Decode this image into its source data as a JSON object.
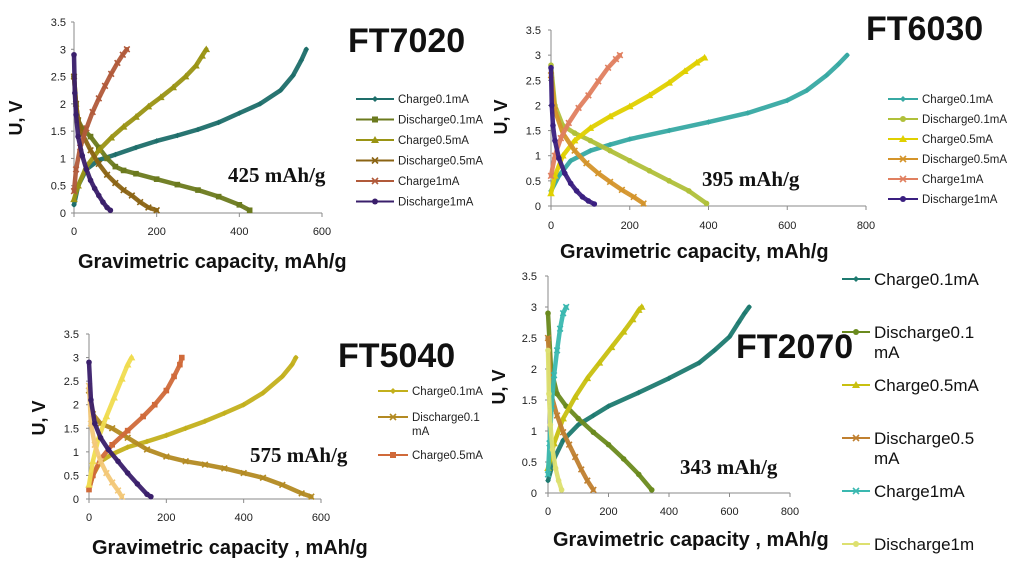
{
  "chart_data": [
    {
      "type": "scatter",
      "title": "FT7020",
      "annotation": "425 mAh/g",
      "xlabel": "Gravimetric capacity, mAh/g",
      "ylabel": "U, V",
      "xlim": [
        0,
        600
      ],
      "ylim": [
        0,
        3.5
      ],
      "xticks": [
        "0",
        "200",
        "400",
        "600"
      ],
      "yticks": [
        "0",
        "0.5",
        "1",
        "1.5",
        "2",
        "2.5",
        "3",
        "3.5"
      ],
      "legend_position": "right",
      "series": [
        {
          "name": "Charge0.1mA",
          "color": "#1e6e6a",
          "marker": "diamond",
          "x": [
            0,
            10,
            30,
            60,
            100,
            150,
            200,
            250,
            300,
            350,
            400,
            450,
            500,
            530,
            550,
            562
          ],
          "y": [
            0.15,
            0.5,
            0.8,
            0.97,
            1.07,
            1.2,
            1.32,
            1.42,
            1.53,
            1.66,
            1.83,
            2.0,
            2.25,
            2.52,
            2.8,
            3.0
          ]
        },
        {
          "name": "Discharge0.1mA",
          "color": "#6b7a1e",
          "marker": "square",
          "x": [
            0,
            5,
            10,
            20,
            40,
            60,
            80,
            100,
            120,
            150,
            200,
            250,
            300,
            350,
            400,
            425
          ],
          "y": [
            2.5,
            2.0,
            1.7,
            1.55,
            1.4,
            1.2,
            1.0,
            0.85,
            0.78,
            0.72,
            0.62,
            0.52,
            0.42,
            0.3,
            0.15,
            0.05
          ]
        },
        {
          "name": "Charge0.5mA",
          "color": "#9a9414",
          "marker": "triangle",
          "x": [
            0,
            10,
            30,
            60,
            90,
            120,
            150,
            180,
            210,
            240,
            270,
            295,
            310,
            320
          ],
          "y": [
            0.25,
            0.5,
            0.85,
            1.15,
            1.38,
            1.58,
            1.76,
            1.95,
            2.12,
            2.3,
            2.5,
            2.7,
            2.88,
            3.0
          ]
        },
        {
          "name": "Discharge0.5mA",
          "color": "#8b6414",
          "marker": "x",
          "x": [
            0,
            5,
            10,
            20,
            40,
            60,
            80,
            100,
            120,
            140,
            160,
            180,
            200
          ],
          "y": [
            2.5,
            2.0,
            1.7,
            1.45,
            1.15,
            0.9,
            0.7,
            0.55,
            0.42,
            0.32,
            0.2,
            0.1,
            0.05
          ]
        },
        {
          "name": "Charge1mA",
          "color": "#b15a3a",
          "marker": "x",
          "x": [
            0,
            5,
            15,
            30,
            45,
            60,
            75,
            90,
            105,
            118,
            128
          ],
          "y": [
            0.4,
            0.8,
            1.2,
            1.55,
            1.85,
            2.1,
            2.33,
            2.55,
            2.75,
            2.9,
            3.0
          ]
        },
        {
          "name": "Discharge1mA",
          "color": "#3a1f6b",
          "marker": "circle",
          "x": [
            0,
            2,
            5,
            10,
            20,
            30,
            40,
            50,
            60,
            70,
            80,
            88
          ],
          "y": [
            2.9,
            2.2,
            1.8,
            1.4,
            1.05,
            0.8,
            0.6,
            0.45,
            0.32,
            0.2,
            0.1,
            0.05
          ]
        }
      ]
    },
    {
      "type": "scatter",
      "title": "FT6030",
      "annotation": "395 mAh/g",
      "xlabel": "Gravimetric capacity, mAh/g",
      "ylabel": "U, V",
      "xlim": [
        0,
        800
      ],
      "ylim": [
        0,
        3.5
      ],
      "xticks": [
        "0",
        "200",
        "400",
        "600",
        "800"
      ],
      "yticks": [
        "0",
        "0.5",
        "1",
        "1.5",
        "2",
        "2.5",
        "3",
        "3.5"
      ],
      "legend_position": "right",
      "series": [
        {
          "name": "Charge0.1mA",
          "color": "#37a9a3",
          "marker": "diamond",
          "x": [
            0,
            20,
            50,
            100,
            150,
            200,
            300,
            400,
            500,
            600,
            650,
            700,
            730,
            752
          ],
          "y": [
            0.3,
            0.6,
            0.9,
            1.1,
            1.22,
            1.33,
            1.5,
            1.67,
            1.85,
            2.1,
            2.3,
            2.6,
            2.82,
            3.0
          ]
        },
        {
          "name": "Discharge0.1mA",
          "color": "#b0c03a",
          "marker": "circle",
          "x": [
            0,
            10,
            30,
            60,
            100,
            150,
            200,
            250,
            300,
            350,
            395
          ],
          "y": [
            2.8,
            2.0,
            1.6,
            1.45,
            1.3,
            1.1,
            0.9,
            0.7,
            0.5,
            0.3,
            0.05
          ]
        },
        {
          "name": "Charge0.5mA",
          "color": "#e0d000",
          "marker": "triangle",
          "x": [
            0,
            10,
            30,
            60,
            100,
            150,
            200,
            250,
            300,
            340,
            370,
            390
          ],
          "y": [
            0.25,
            0.6,
            1.0,
            1.3,
            1.55,
            1.78,
            1.98,
            2.2,
            2.45,
            2.68,
            2.85,
            2.95
          ]
        },
        {
          "name": "Discharge0.5mA",
          "color": "#d4942a",
          "marker": "x",
          "x": [
            0,
            10,
            30,
            60,
            90,
            120,
            150,
            180,
            210,
            235
          ],
          "y": [
            2.6,
            1.9,
            1.45,
            1.1,
            0.85,
            0.65,
            0.48,
            0.32,
            0.18,
            0.05
          ]
        },
        {
          "name": "Charge1mA",
          "color": "#e08060",
          "marker": "x",
          "x": [
            0,
            10,
            25,
            45,
            70,
            95,
            120,
            145,
            165,
            175
          ],
          "y": [
            0.6,
            1.0,
            1.35,
            1.65,
            1.95,
            2.2,
            2.48,
            2.75,
            2.92,
            3.0
          ]
        },
        {
          "name": "Discharge1mA",
          "color": "#3a1f80",
          "marker": "circle",
          "x": [
            0,
            2,
            5,
            10,
            20,
            35,
            50,
            65,
            80,
            95,
            110
          ],
          "y": [
            2.75,
            2.0,
            1.6,
            1.3,
            0.95,
            0.65,
            0.45,
            0.3,
            0.18,
            0.1,
            0.04
          ]
        }
      ]
    },
    {
      "type": "scatter",
      "title": "FT5040",
      "annotation": "575 mAh/g",
      "xlabel": "Gravimetric capacity , mAh/g",
      "ylabel": "U, V",
      "xlim": [
        0,
        600
      ],
      "ylim": [
        0,
        3.5
      ],
      "xticks": [
        "0",
        "200",
        "400",
        "600"
      ],
      "yticks": [
        "0",
        "0.5",
        "1",
        "1.5",
        "2",
        "2.5",
        "3",
        "3.5"
      ],
      "legend_position": "right",
      "series": [
        {
          "name": "Charge0.1mA",
          "color": "#c3b01c",
          "marker": "diamond",
          "x": [
            0,
            10,
            30,
            60,
            100,
            150,
            200,
            250,
            300,
            350,
            400,
            450,
            500,
            525,
            535
          ],
          "y": [
            0.2,
            0.5,
            0.8,
            0.95,
            1.1,
            1.22,
            1.35,
            1.5,
            1.65,
            1.82,
            2.0,
            2.25,
            2.6,
            2.85,
            3.0
          ]
        },
        {
          "name": "Discharge0.1\nmA",
          "color": "#b38a22",
          "marker": "x",
          "x": [
            0,
            10,
            30,
            60,
            100,
            150,
            200,
            250,
            300,
            350,
            400,
            450,
            500,
            550,
            575
          ],
          "y": [
            2.3,
            1.8,
            1.6,
            1.5,
            1.3,
            1.05,
            0.9,
            0.8,
            0.73,
            0.65,
            0.55,
            0.45,
            0.3,
            0.12,
            0.05
          ]
        },
        {
          "name": "Charge0.5mA",
          "color": "#d06a3a",
          "marker": "square",
          "x": [
            0,
            10,
            30,
            60,
            100,
            140,
            170,
            200,
            220,
            235,
            240
          ],
          "y": [
            0.2,
            0.5,
            0.85,
            1.15,
            1.45,
            1.75,
            2.0,
            2.3,
            2.6,
            2.85,
            3.0
          ]
        },
        {
          "name": "",
          "color": "#f0dc50",
          "marker": "triangle",
          "x": [
            0,
            10,
            25,
            45,
            65,
            85,
            100,
            110
          ],
          "y": [
            0.3,
            0.8,
            1.3,
            1.75,
            2.15,
            2.55,
            2.85,
            3.0
          ]
        },
        {
          "name": "",
          "color": "#f3c878",
          "marker": "x",
          "x": [
            0,
            5,
            15,
            30,
            45,
            60,
            75,
            85
          ],
          "y": [
            2.4,
            1.6,
            1.15,
            0.8,
            0.55,
            0.35,
            0.18,
            0.05
          ]
        },
        {
          "name": "",
          "color": "#3a1f6b",
          "marker": "circle",
          "x": [
            0,
            5,
            15,
            30,
            50,
            75,
            100,
            125,
            150,
            160
          ],
          "y": [
            2.9,
            2.1,
            1.6,
            1.3,
            1.05,
            0.8,
            0.55,
            0.32,
            0.1,
            0.05
          ]
        }
      ]
    },
    {
      "type": "scatter",
      "title": "FT2070",
      "annotation": "343 mAh/g",
      "xlabel": "Gravimetric capacity , mAh/g",
      "ylabel": "U, V",
      "xlim": [
        0,
        800
      ],
      "ylim": [
        0,
        3.5
      ],
      "xticks": [
        "0",
        "200",
        "400",
        "600",
        "800"
      ],
      "yticks": [
        "0",
        "0.5",
        "1",
        "1.5",
        "2",
        "2.5",
        "3",
        "3.5"
      ],
      "legend_position": "right",
      "series": [
        {
          "name": "Charge0.1mA",
          "color": "#1e7a70",
          "marker": "diamond",
          "x": [
            0,
            20,
            50,
            100,
            150,
            200,
            300,
            400,
            500,
            550,
            600,
            630,
            650,
            665
          ],
          "y": [
            0.2,
            0.55,
            0.85,
            1.1,
            1.25,
            1.4,
            1.62,
            1.85,
            2.1,
            2.3,
            2.52,
            2.75,
            2.9,
            3.0
          ]
        },
        {
          "name": "Discharge0.1\nmA",
          "color": "#6a8a1e",
          "marker": "circle",
          "x": [
            0,
            10,
            30,
            60,
            100,
            150,
            200,
            250,
            300,
            343
          ],
          "y": [
            2.9,
            2.0,
            1.6,
            1.4,
            1.2,
            0.98,
            0.78,
            0.55,
            0.3,
            0.05
          ]
        },
        {
          "name": "Charge0.5mA",
          "color": "#c8c010",
          "marker": "triangle",
          "x": [
            0,
            20,
            50,
            90,
            130,
            170,
            210,
            250,
            280,
            300,
            310
          ],
          "y": [
            0.4,
            0.8,
            1.2,
            1.55,
            1.85,
            2.1,
            2.35,
            2.6,
            2.8,
            2.95,
            3.0
          ]
        },
        {
          "name": "Discharge0.5\nmA",
          "color": "#c08030",
          "marker": "x",
          "x": [
            0,
            10,
            30,
            50,
            70,
            90,
            110,
            130,
            150
          ],
          "y": [
            2.5,
            1.6,
            1.25,
            0.98,
            0.78,
            0.58,
            0.38,
            0.2,
            0.05
          ]
        },
        {
          "name": "Charge1mA",
          "color": "#3ab8b0",
          "marker": "x",
          "x": [
            0,
            5,
            12,
            20,
            30,
            40,
            50,
            60
          ],
          "y": [
            0.3,
            0.8,
            1.4,
            1.9,
            2.3,
            2.65,
            2.9,
            3.0
          ]
        },
        {
          "name": "Discharge1m",
          "color": "#dde070",
          "marker": "circle",
          "x": [
            0,
            3,
            8,
            15,
            25,
            35,
            45
          ],
          "y": [
            2.3,
            1.6,
            1.1,
            0.7,
            0.4,
            0.2,
            0.05
          ]
        }
      ]
    }
  ]
}
